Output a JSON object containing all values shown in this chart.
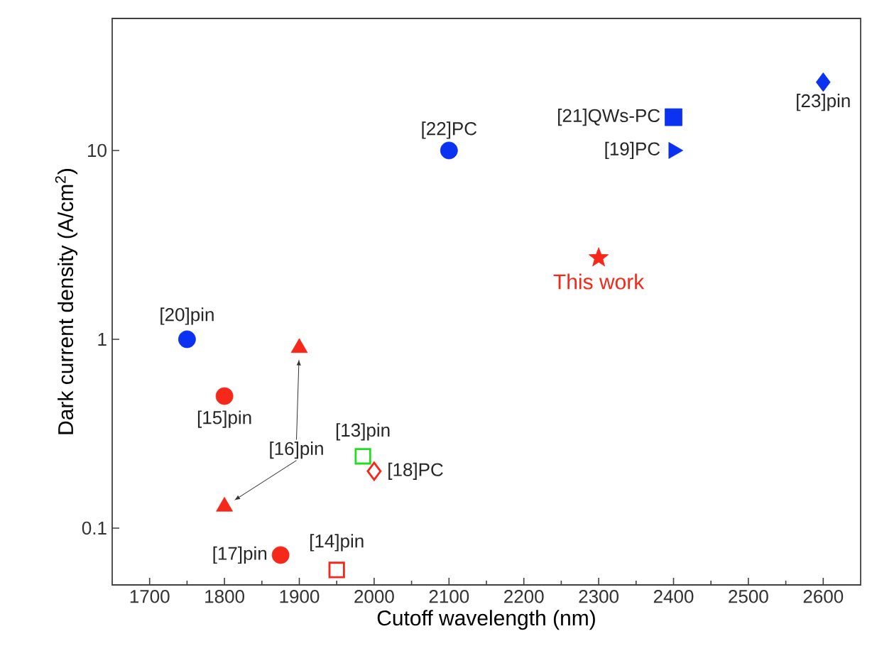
{
  "chart_data": {
    "type": "scatter",
    "xlabel": "Cutoff wavelength (nm)",
    "ylabel": "Dark current density  (A/cm$^{2}$)",
    "log": "y",
    "xlim": [
      1650,
      2650
    ],
    "ylim": [
      0.05,
      50
    ],
    "xticks": [
      1700,
      1800,
      1900,
      2000,
      2100,
      2200,
      2300,
      2400,
      2500,
      2600
    ],
    "yticks": [
      0.1,
      1,
      10
    ],
    "series": [
      {
        "name": "[23]pin",
        "color": "#0a32f0",
        "marker": "diamond",
        "x": [
          2600
        ],
        "values": [
          23
        ]
      },
      {
        "name": "[21]QWs-PC",
        "color": "#0a32f0",
        "marker": "square",
        "x": [
          2400
        ],
        "values": [
          15
        ]
      },
      {
        "name": "[19]PC",
        "color": "#0a32f0",
        "marker": "triangle-right",
        "x": [
          2400
        ],
        "values": [
          10
        ]
      },
      {
        "name": "[22]PC",
        "color": "#0a32f0",
        "marker": "circle",
        "x": [
          2100
        ],
        "values": [
          10
        ]
      },
      {
        "name": "This work",
        "color": "#f5281a",
        "marker": "star",
        "x": [
          2300
        ],
        "values": [
          2.7
        ]
      },
      {
        "name": "[20]pin",
        "color": "#0a32f0",
        "marker": "circle",
        "x": [
          1750
        ],
        "values": [
          1.0
        ]
      },
      {
        "name": "[15]pin",
        "color": "#f5281a",
        "marker": "circle",
        "x": [
          1800
        ],
        "values": [
          0.5
        ]
      },
      {
        "name": "[16]pin",
        "color": "#f5281a",
        "marker": "triangle",
        "x": [
          1900,
          1800
        ],
        "values": [
          0.9,
          0.13
        ]
      },
      {
        "name": "[13]pin",
        "color": "#22dd22",
        "marker": "square-open",
        "x": [
          1985
        ],
        "values": [
          0.24
        ]
      },
      {
        "name": "[18]PC",
        "color": "#f5281a",
        "marker": "diamond-open",
        "x": [
          2000
        ],
        "values": [
          0.2
        ]
      },
      {
        "name": "[17]pin",
        "color": "#f5281a",
        "marker": "circle",
        "x": [
          1875
        ],
        "values": [
          0.072
        ]
      },
      {
        "name": "[14]pin",
        "color": "#f5281a",
        "marker": "square-open",
        "x": [
          1950
        ],
        "values": [
          0.06
        ]
      }
    ]
  }
}
